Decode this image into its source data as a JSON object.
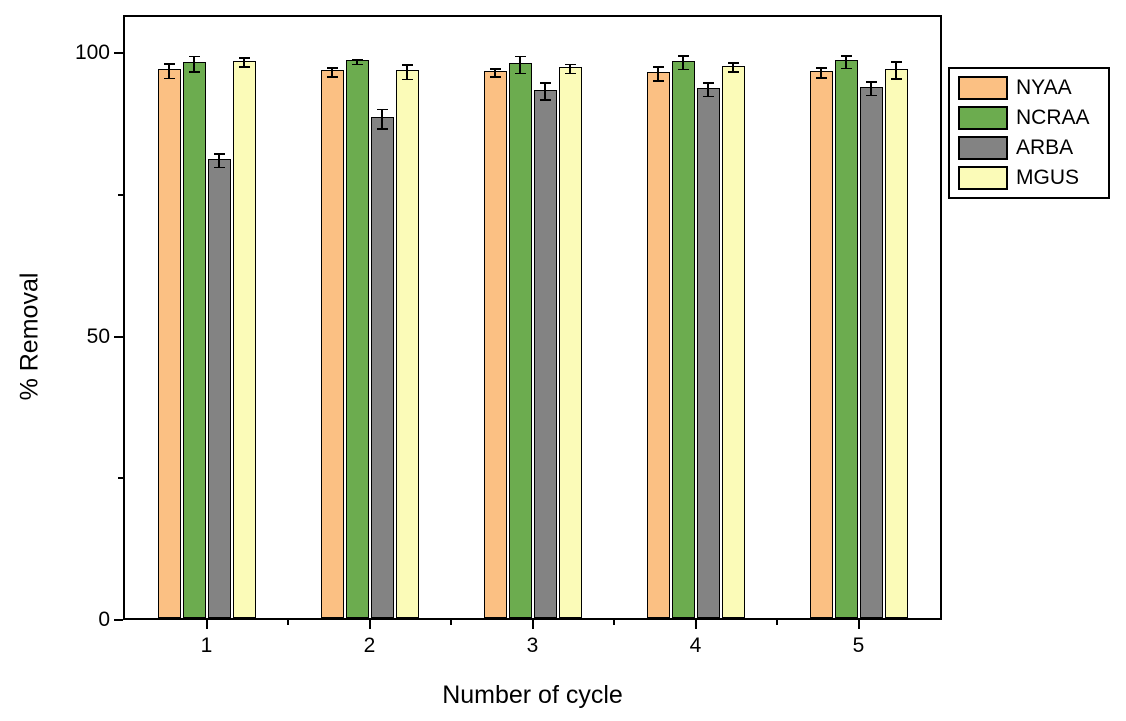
{
  "figure": {
    "background": "#FFFFFF",
    "frame_color": "#000000",
    "error_bar_color": "#000000"
  },
  "chart_data": {
    "type": "bar",
    "title": "",
    "xlabel": "Number of cycle",
    "ylabel": "% Removal",
    "categories": [
      "1",
      "2",
      "3",
      "4",
      "5"
    ],
    "series": [
      {
        "name": "NYAA",
        "color": "#FBC083",
        "values": [
          96.8,
          96.6,
          96.5,
          96.3,
          96.5
        ],
        "errors": [
          1.3,
          0.8,
          0.7,
          1.2,
          0.9
        ]
      },
      {
        "name": "NCRAA",
        "color": "#6CAC4F",
        "values": [
          98.0,
          98.4,
          97.9,
          98.3,
          98.4
        ],
        "errors": [
          1.4,
          0.4,
          1.5,
          1.2,
          1.1
        ]
      },
      {
        "name": "ARBA",
        "color": "#838383",
        "values": [
          81.0,
          88.3,
          93.2,
          93.5,
          93.7
        ],
        "errors": [
          1.2,
          1.7,
          1.5,
          1.2,
          1.2
        ]
      },
      {
        "name": "MGUS",
        "color": "#FBFBB8",
        "values": [
          98.3,
          96.6,
          97.2,
          97.4,
          96.9
        ],
        "errors": [
          0.8,
          1.3,
          0.8,
          0.8,
          1.5
        ]
      }
    ],
    "ylim": [
      0,
      100
    ],
    "yticks": [
      0,
      50,
      100
    ],
    "yticks_minor": [
      25,
      75
    ],
    "xlim": [
      0.5,
      5.5
    ],
    "xticks_minor": [
      1.5,
      2.5,
      3.5,
      4.5
    ],
    "grid": false,
    "legend_position": "upper-right-outside"
  }
}
